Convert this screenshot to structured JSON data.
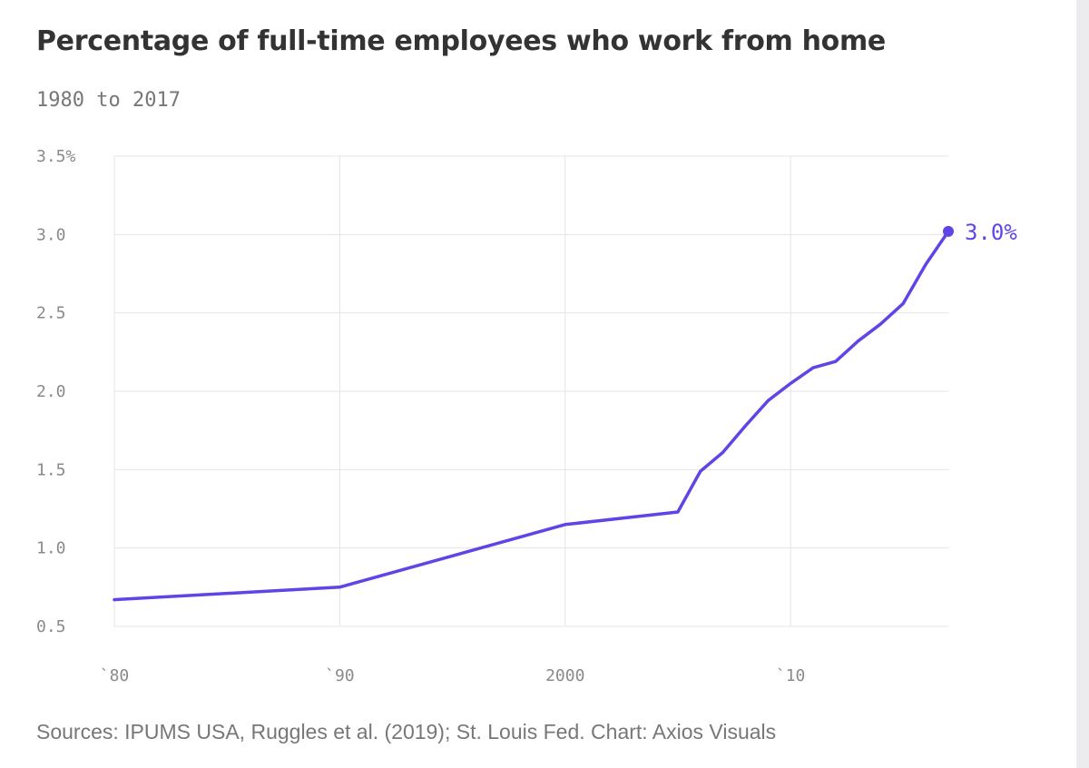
{
  "header": {
    "title": "Percentage of full-time employees who work from home",
    "subtitle": "1980 to 2017"
  },
  "footer": {
    "source": "Sources: IPUMS USA, Ruggles et al. (2019); St. Louis Fed. Chart: Axios Visuals"
  },
  "colors": {
    "line": "#5e45e6",
    "grid": "#e4e4e4",
    "tick_text": "#8a8a8a"
  },
  "chart_data": {
    "type": "line",
    "title": "Percentage of full-time employees who work from home",
    "subtitle": "1980 to 2017",
    "xlabel": "",
    "ylabel": "",
    "xlim": [
      1980,
      2017
    ],
    "ylim": [
      0.5,
      3.5
    ],
    "grid": true,
    "x_ticks": [
      {
        "value": 1980,
        "label": "`80"
      },
      {
        "value": 1990,
        "label": "`90"
      },
      {
        "value": 2000,
        "label": "2000"
      },
      {
        "value": 2010,
        "label": "`10"
      }
    ],
    "y_ticks": [
      {
        "value": 0.5,
        "label": "0.5"
      },
      {
        "value": 1.0,
        "label": "1.0"
      },
      {
        "value": 1.5,
        "label": "1.5"
      },
      {
        "value": 2.0,
        "label": "2.0"
      },
      {
        "value": 2.5,
        "label": "2.5"
      },
      {
        "value": 3.0,
        "label": "3.0"
      },
      {
        "value": 3.5,
        "label": "3.5%"
      }
    ],
    "series": [
      {
        "x": [
          1980,
          1990,
          2000,
          2005,
          2006,
          2007,
          2008,
          2009,
          2010,
          2011,
          2012,
          2013,
          2014,
          2015,
          2016,
          2017
        ],
        "values": [
          0.67,
          0.75,
          1.15,
          1.23,
          1.49,
          1.61,
          1.78,
          1.94,
          2.05,
          2.15,
          2.19,
          2.32,
          2.43,
          2.56,
          2.81,
          3.02
        ]
      }
    ],
    "annotations": [
      {
        "x": 2017,
        "y": 3.02,
        "label": "3.0%"
      }
    ]
  }
}
